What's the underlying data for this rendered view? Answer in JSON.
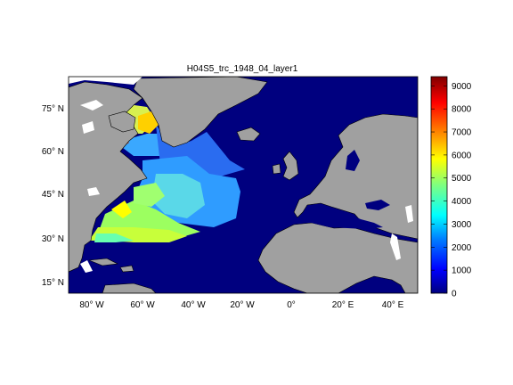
{
  "figure": {
    "title": "H04S5_trc_1948_04_layer1",
    "colorbar_ticks": [
      "0",
      "1000",
      "2000",
      "3000",
      "4000",
      "5000",
      "6000",
      "7000",
      "8000",
      "9000"
    ],
    "colorbar_range": [
      0,
      9400
    ],
    "lat_labels": [
      "15° N",
      "30° N",
      "45° N",
      "60° N",
      "75° N"
    ],
    "lon_labels": [
      "80° W",
      "60° W",
      "40° W",
      "20° W",
      "0°",
      "20° E",
      "40° E"
    ],
    "colors": {
      "ocean": "#00007f",
      "land": "#a0a0a0",
      "nodata": "#ffffff",
      "colormap": [
        "#00007f",
        "#0000ff",
        "#007fff",
        "#00ffff",
        "#7fff7f",
        "#ffff00",
        "#ff7f00",
        "#ff0000",
        "#7f0000"
      ]
    }
  }
}
